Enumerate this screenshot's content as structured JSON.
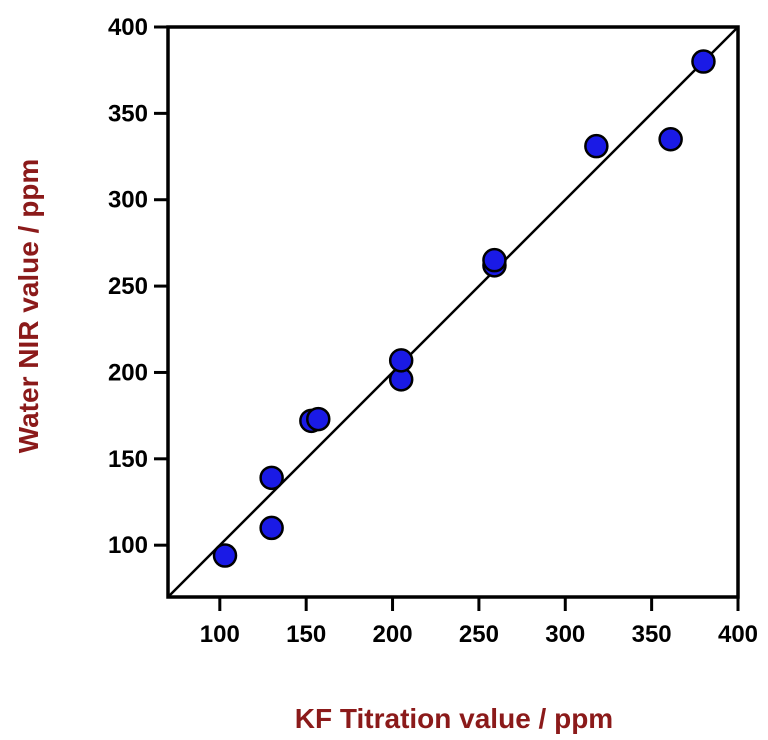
{
  "chart_data": {
    "type": "scatter",
    "title": "",
    "xlabel": "KF Titration value / ppm",
    "ylabel": "Water NIR value / ppm",
    "xlim": [
      70,
      400
    ],
    "ylim": [
      70,
      400
    ],
    "x_ticks": [
      100,
      150,
      200,
      250,
      300,
      350,
      400
    ],
    "y_ticks": [
      100,
      150,
      200,
      250,
      300,
      350,
      400
    ],
    "grid": false,
    "legend": "none",
    "reference_line": {
      "from": [
        70,
        70
      ],
      "to": [
        400,
        400
      ]
    },
    "series": [
      {
        "x": [
          103,
          130,
          130,
          153,
          157,
          205,
          205,
          259,
          259,
          318,
          361,
          380
        ],
        "y": [
          94,
          110,
          139,
          172,
          173,
          196,
          207,
          262,
          265,
          331,
          335,
          380
        ]
      }
    ],
    "colors": {
      "marker_fill": "#1a1ae6",
      "marker_stroke": "#000000",
      "axis_title": "#8b1a1a",
      "frame": "#000000"
    }
  }
}
